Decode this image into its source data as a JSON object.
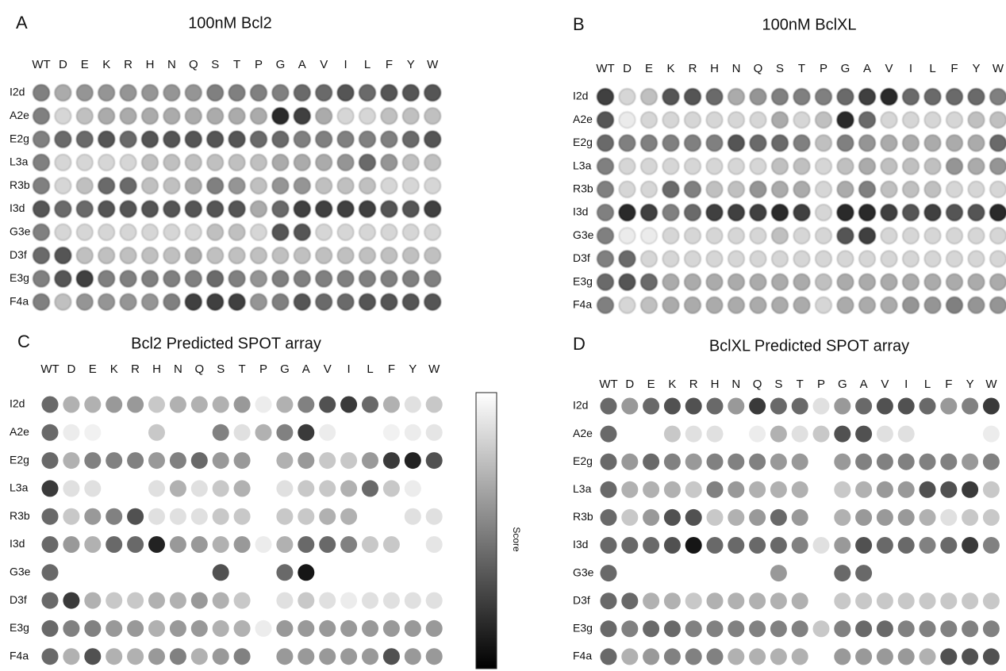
{
  "chart_data": [
    {
      "type": "dotarray",
      "panel": "A",
      "title": "100nM Bcl2",
      "style": "blot",
      "zlim": [
        0,
        1
      ],
      "x": [
        "WT",
        "D",
        "E",
        "K",
        "R",
        "H",
        "N",
        "Q",
        "S",
        "T",
        "P",
        "G",
        "A",
        "V",
        "I",
        "L",
        "F",
        "Y",
        "W"
      ],
      "y": [
        "I2d",
        "A2e",
        "E2g",
        "L3a",
        "R3b",
        "I3d",
        "G3e",
        "D3f",
        "E3g",
        "F4a"
      ],
      "values": [
        [
          0.5,
          0.3,
          0.4,
          0.4,
          0.4,
          0.4,
          0.4,
          0.4,
          0.5,
          0.5,
          0.5,
          0.5,
          0.6,
          0.6,
          0.7,
          0.6,
          0.7,
          0.7,
          0.7
        ],
        [
          0.5,
          0.1,
          0.2,
          0.3,
          0.3,
          0.3,
          0.3,
          0.3,
          0.3,
          0.3,
          0.3,
          0.9,
          0.8,
          0.3,
          0.1,
          0.1,
          0.2,
          0.2,
          0.2
        ],
        [
          0.5,
          0.6,
          0.6,
          0.7,
          0.6,
          0.7,
          0.7,
          0.7,
          0.7,
          0.7,
          0.6,
          0.6,
          0.5,
          0.5,
          0.5,
          0.5,
          0.5,
          0.6,
          0.7
        ],
        [
          0.5,
          0.1,
          0.1,
          0.1,
          0.1,
          0.2,
          0.2,
          0.2,
          0.2,
          0.2,
          0.2,
          0.3,
          0.3,
          0.3,
          0.4,
          0.6,
          0.4,
          0.2,
          0.2
        ],
        [
          0.5,
          0.1,
          0.2,
          0.6,
          0.6,
          0.2,
          0.2,
          0.3,
          0.5,
          0.4,
          0.2,
          0.4,
          0.4,
          0.2,
          0.2,
          0.2,
          0.1,
          0.1,
          0.1
        ],
        [
          0.7,
          0.6,
          0.6,
          0.7,
          0.7,
          0.7,
          0.7,
          0.7,
          0.7,
          0.7,
          0.3,
          0.6,
          0.8,
          0.8,
          0.8,
          0.8,
          0.7,
          0.7,
          0.8
        ],
        [
          0.5,
          0.1,
          0.1,
          0.1,
          0.1,
          0.1,
          0.1,
          0.1,
          0.2,
          0.2,
          0.1,
          0.7,
          0.7,
          0.1,
          0.1,
          0.1,
          0.1,
          0.1,
          0.1
        ],
        [
          0.6,
          0.7,
          0.2,
          0.2,
          0.2,
          0.2,
          0.2,
          0.3,
          0.2,
          0.2,
          0.2,
          0.2,
          0.2,
          0.2,
          0.2,
          0.2,
          0.2,
          0.2,
          0.2
        ],
        [
          0.5,
          0.7,
          0.8,
          0.5,
          0.5,
          0.5,
          0.5,
          0.5,
          0.6,
          0.5,
          0.4,
          0.5,
          0.5,
          0.5,
          0.5,
          0.5,
          0.5,
          0.5,
          0.5
        ],
        [
          0.5,
          0.2,
          0.4,
          0.4,
          0.4,
          0.4,
          0.5,
          0.8,
          0.8,
          0.8,
          0.4,
          0.5,
          0.7,
          0.6,
          0.6,
          0.7,
          0.7,
          0.7,
          0.7
        ]
      ]
    },
    {
      "type": "dotarray",
      "panel": "B",
      "title": "100nM BclXL",
      "style": "blot",
      "zlim": [
        0,
        1
      ],
      "x": [
        "WT",
        "D",
        "E",
        "K",
        "R",
        "H",
        "N",
        "Q",
        "S",
        "T",
        "P",
        "G",
        "A",
        "V",
        "I",
        "L",
        "F",
        "Y",
        "W"
      ],
      "y": [
        "I2d",
        "A2e",
        "E2g",
        "L3a",
        "R3b",
        "I3d",
        "G3e",
        "D3f",
        "E3g",
        "F4a"
      ],
      "values": [
        [
          0.8,
          0.1,
          0.2,
          0.7,
          0.7,
          0.6,
          0.3,
          0.4,
          0.5,
          0.5,
          0.5,
          0.6,
          0.8,
          0.9,
          0.6,
          0.6,
          0.6,
          0.6,
          0.5
        ],
        [
          0.7,
          0,
          0.1,
          0.1,
          0.1,
          0.1,
          0.1,
          0.1,
          0.3,
          0.1,
          0.2,
          0.9,
          0.6,
          0.1,
          0.1,
          0.1,
          0.1,
          0.2,
          0.2
        ],
        [
          0.6,
          0.5,
          0.5,
          0.5,
          0.5,
          0.5,
          0.7,
          0.6,
          0.6,
          0.5,
          0.2,
          0.5,
          0.4,
          0.3,
          0.3,
          0.3,
          0.3,
          0.3,
          0.6
        ],
        [
          0.5,
          0.1,
          0.1,
          0.1,
          0.1,
          0.1,
          0.1,
          0.1,
          0.2,
          0.2,
          0.1,
          0.2,
          0.3,
          0.2,
          0.2,
          0.2,
          0.4,
          0.3,
          0.4
        ],
        [
          0.5,
          0.1,
          0.1,
          0.6,
          0.5,
          0.2,
          0.2,
          0.4,
          0.3,
          0.3,
          0.1,
          0.3,
          0.5,
          0.2,
          0.2,
          0.2,
          0.1,
          0.1,
          0.1
        ],
        [
          0.5,
          0.9,
          0.8,
          0.5,
          0.6,
          0.8,
          0.8,
          0.8,
          0.9,
          0.8,
          0.1,
          0.9,
          0.9,
          0.8,
          0.7,
          0.8,
          0.7,
          0.7,
          0.9
        ],
        [
          0.5,
          0,
          0,
          0.1,
          0.1,
          0.1,
          0.1,
          0.1,
          0.2,
          0.1,
          0.1,
          0.7,
          0.8,
          0.1,
          0.1,
          0.1,
          0.1,
          0.1,
          0.1
        ],
        [
          0.5,
          0.6,
          0.1,
          0.1,
          0.1,
          0.1,
          0.1,
          0.1,
          0.1,
          0.1,
          0.1,
          0.1,
          0.1,
          0.1,
          0.1,
          0.1,
          0.1,
          0.1,
          0.1
        ],
        [
          0.6,
          0.7,
          0.6,
          0.3,
          0.3,
          0.3,
          0.3,
          0.3,
          0.3,
          0.3,
          0.2,
          0.3,
          0.3,
          0.3,
          0.3,
          0.3,
          0.3,
          0.3,
          0.3
        ],
        [
          0.5,
          0.1,
          0.2,
          0.3,
          0.3,
          0.3,
          0.3,
          0.3,
          0.3,
          0.3,
          0.1,
          0.3,
          0.3,
          0.3,
          0.4,
          0.4,
          0.5,
          0.4,
          0.4
        ]
      ]
    },
    {
      "type": "dotarray",
      "panel": "C",
      "title": "Bcl2 Predicted SPOT array",
      "style": "flat",
      "zlim": [
        0,
        1
      ],
      "colorbar_label": "Score",
      "x": [
        "WT",
        "D",
        "E",
        "K",
        "R",
        "H",
        "N",
        "Q",
        "S",
        "T",
        "P",
        "G",
        "A",
        "V",
        "I",
        "L",
        "F",
        "Y",
        "W"
      ],
      "y": [
        "I2d",
        "A2e",
        "E2g",
        "L3a",
        "R3b",
        "I3d",
        "G3e",
        "D3f",
        "E3g",
        "F4a"
      ],
      "values": [
        [
          0.6,
          0.3,
          0.3,
          0.4,
          0.4,
          0.2,
          0.3,
          0.3,
          0.3,
          0.4,
          0.05,
          0.3,
          0.5,
          0.7,
          0.8,
          0.6,
          0.3,
          0.1,
          0.2
        ],
        [
          0.6,
          0.05,
          0.03,
          null,
          null,
          0.2,
          null,
          null,
          0.5,
          0.1,
          0.3,
          0.5,
          0.8,
          0.05,
          null,
          null,
          0.03,
          0.05,
          0.08
        ],
        [
          0.6,
          0.3,
          0.5,
          0.5,
          0.5,
          0.4,
          0.5,
          0.6,
          0.4,
          0.4,
          null,
          0.3,
          0.4,
          0.2,
          0.2,
          0.4,
          0.8,
          0.9,
          0.7
        ],
        [
          0.8,
          0.1,
          0.1,
          null,
          null,
          0.1,
          0.3,
          0.1,
          0.2,
          0.3,
          null,
          0.1,
          0.2,
          0.2,
          0.3,
          0.6,
          0.2,
          0.05,
          null
        ],
        [
          0.6,
          0.2,
          0.4,
          0.5,
          0.7,
          0.1,
          0.1,
          0.1,
          0.2,
          0.2,
          null,
          0.2,
          0.2,
          0.3,
          0.3,
          null,
          null,
          0.1,
          0.1
        ],
        [
          0.6,
          0.4,
          0.3,
          0.6,
          0.6,
          0.9,
          0.4,
          0.4,
          0.3,
          0.4,
          0.05,
          0.3,
          0.6,
          0.6,
          0.5,
          0.2,
          0.2,
          null,
          0.08
        ],
        [
          0.6,
          null,
          null,
          null,
          null,
          null,
          null,
          null,
          0.7,
          null,
          null,
          0.6,
          0.95,
          null,
          null,
          null,
          null,
          null,
          null
        ],
        [
          0.6,
          0.8,
          0.3,
          0.2,
          0.2,
          0.3,
          0.3,
          0.4,
          0.3,
          0.2,
          null,
          0.1,
          0.2,
          0.1,
          0.05,
          0.1,
          0.1,
          0.1,
          0.1
        ],
        [
          0.6,
          0.5,
          0.5,
          0.4,
          0.4,
          0.3,
          0.4,
          0.4,
          0.3,
          0.3,
          0.05,
          0.4,
          0.4,
          0.4,
          0.4,
          0.4,
          0.4,
          0.4,
          0.4
        ],
        [
          0.6,
          0.3,
          0.7,
          0.3,
          0.3,
          0.4,
          0.5,
          0.3,
          0.4,
          0.5,
          null,
          0.4,
          0.4,
          0.4,
          0.4,
          0.4,
          0.7,
          0.4,
          0.4
        ]
      ]
    },
    {
      "type": "dotarray",
      "panel": "D",
      "title": "BclXL Predicted SPOT array",
      "style": "flat",
      "zlim": [
        0,
        1
      ],
      "x": [
        "WT",
        "D",
        "E",
        "K",
        "R",
        "H",
        "N",
        "Q",
        "S",
        "T",
        "P",
        "G",
        "A",
        "V",
        "I",
        "L",
        "F",
        "Y",
        "W"
      ],
      "y": [
        "I2d",
        "A2e",
        "E2g",
        "L3a",
        "R3b",
        "I3d",
        "G3e",
        "D3f",
        "E3g",
        "F4a"
      ],
      "values": [
        [
          0.6,
          0.4,
          0.6,
          0.7,
          0.7,
          0.6,
          0.4,
          0.8,
          0.6,
          0.6,
          0.1,
          0.4,
          0.6,
          0.7,
          0.7,
          0.6,
          0.4,
          0.5,
          0.8
        ],
        [
          0.6,
          null,
          null,
          0.2,
          0.1,
          0.1,
          null,
          0.05,
          0.3,
          0.1,
          0.2,
          0.7,
          0.7,
          0.1,
          0.1,
          null,
          null,
          null,
          0.05
        ],
        [
          0.6,
          0.4,
          0.6,
          0.5,
          0.4,
          0.5,
          0.5,
          0.5,
          0.4,
          0.4,
          null,
          0.4,
          0.5,
          0.5,
          0.5,
          0.5,
          0.5,
          0.4,
          0.5
        ],
        [
          0.6,
          0.3,
          0.3,
          0.3,
          0.2,
          0.5,
          0.4,
          0.3,
          0.3,
          0.3,
          null,
          0.2,
          0.3,
          0.4,
          0.4,
          0.7,
          0.7,
          0.8,
          0.2
        ],
        [
          0.6,
          0.2,
          0.4,
          0.7,
          0.7,
          0.2,
          0.3,
          0.4,
          0.6,
          0.4,
          null,
          0.3,
          0.4,
          0.4,
          0.4,
          0.3,
          0.1,
          0.2,
          0.2
        ],
        [
          0.6,
          0.6,
          0.6,
          0.7,
          0.95,
          0.6,
          0.6,
          0.6,
          0.6,
          0.5,
          0.1,
          0.4,
          0.7,
          0.6,
          0.6,
          0.5,
          0.6,
          0.8,
          0.5
        ],
        [
          0.6,
          null,
          null,
          null,
          null,
          null,
          null,
          null,
          0.4,
          null,
          null,
          0.6,
          0.6,
          null,
          null,
          null,
          null,
          null,
          null
        ],
        [
          0.6,
          0.6,
          0.3,
          0.3,
          0.2,
          0.3,
          0.3,
          0.3,
          0.3,
          0.3,
          null,
          0.2,
          0.2,
          0.2,
          0.2,
          0.2,
          0.2,
          0.2,
          0.2
        ],
        [
          0.6,
          0.5,
          0.6,
          0.6,
          0.5,
          0.5,
          0.5,
          0.5,
          0.5,
          0.5,
          0.2,
          0.5,
          0.6,
          0.6,
          0.5,
          0.5,
          0.5,
          0.5,
          0.5
        ],
        [
          0.6,
          0.3,
          0.4,
          0.5,
          0.5,
          0.5,
          0.3,
          0.3,
          0.3,
          0.3,
          null,
          0.4,
          0.4,
          0.4,
          0.4,
          0.3,
          0.7,
          0.7,
          0.7
        ]
      ]
    }
  ]
}
